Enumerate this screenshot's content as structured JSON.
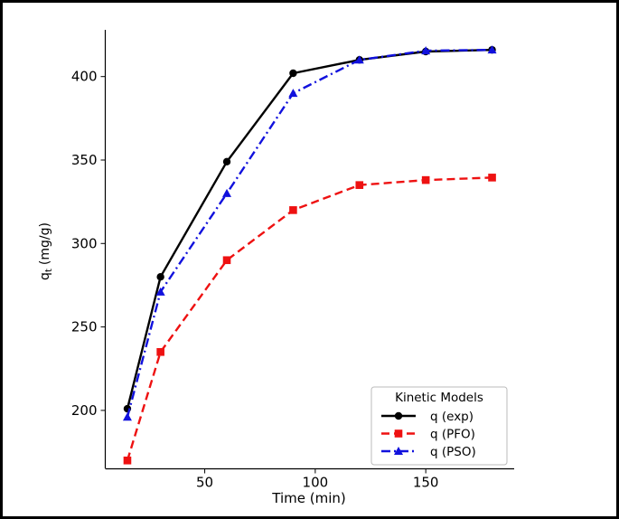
{
  "chart_data": {
    "type": "line",
    "title": "",
    "xlabel": "Time (min)",
    "ylabel_main": "q",
    "ylabel_sub": "t",
    "ylabel_unit": "(mg/g)",
    "xlim": [
      5,
      190
    ],
    "ylim": [
      165,
      428
    ],
    "xticks": [
      50,
      100,
      150
    ],
    "yticks": [
      200,
      250,
      300,
      350,
      400
    ],
    "x": [
      15,
      30,
      60,
      90,
      120,
      150,
      180
    ],
    "legend": {
      "title": "Kinetic Models",
      "placement": "lower-right"
    },
    "series": [
      {
        "name": "q (exp)",
        "values": [
          201,
          280,
          349,
          402,
          410,
          415,
          416
        ],
        "color": "#000000",
        "dash": "solid",
        "marker": "circle"
      },
      {
        "name": "q (PFO)",
        "values": [
          170,
          235,
          290,
          320,
          335,
          338,
          339.5
        ],
        "color": "#ee1111",
        "dash": "dashed",
        "marker": "square"
      },
      {
        "name": "q (PSO)",
        "values": [
          196,
          271,
          330,
          390,
          410,
          415.5,
          416
        ],
        "color": "#1111dd",
        "dash": "dashdot",
        "marker": "triangle"
      }
    ]
  }
}
